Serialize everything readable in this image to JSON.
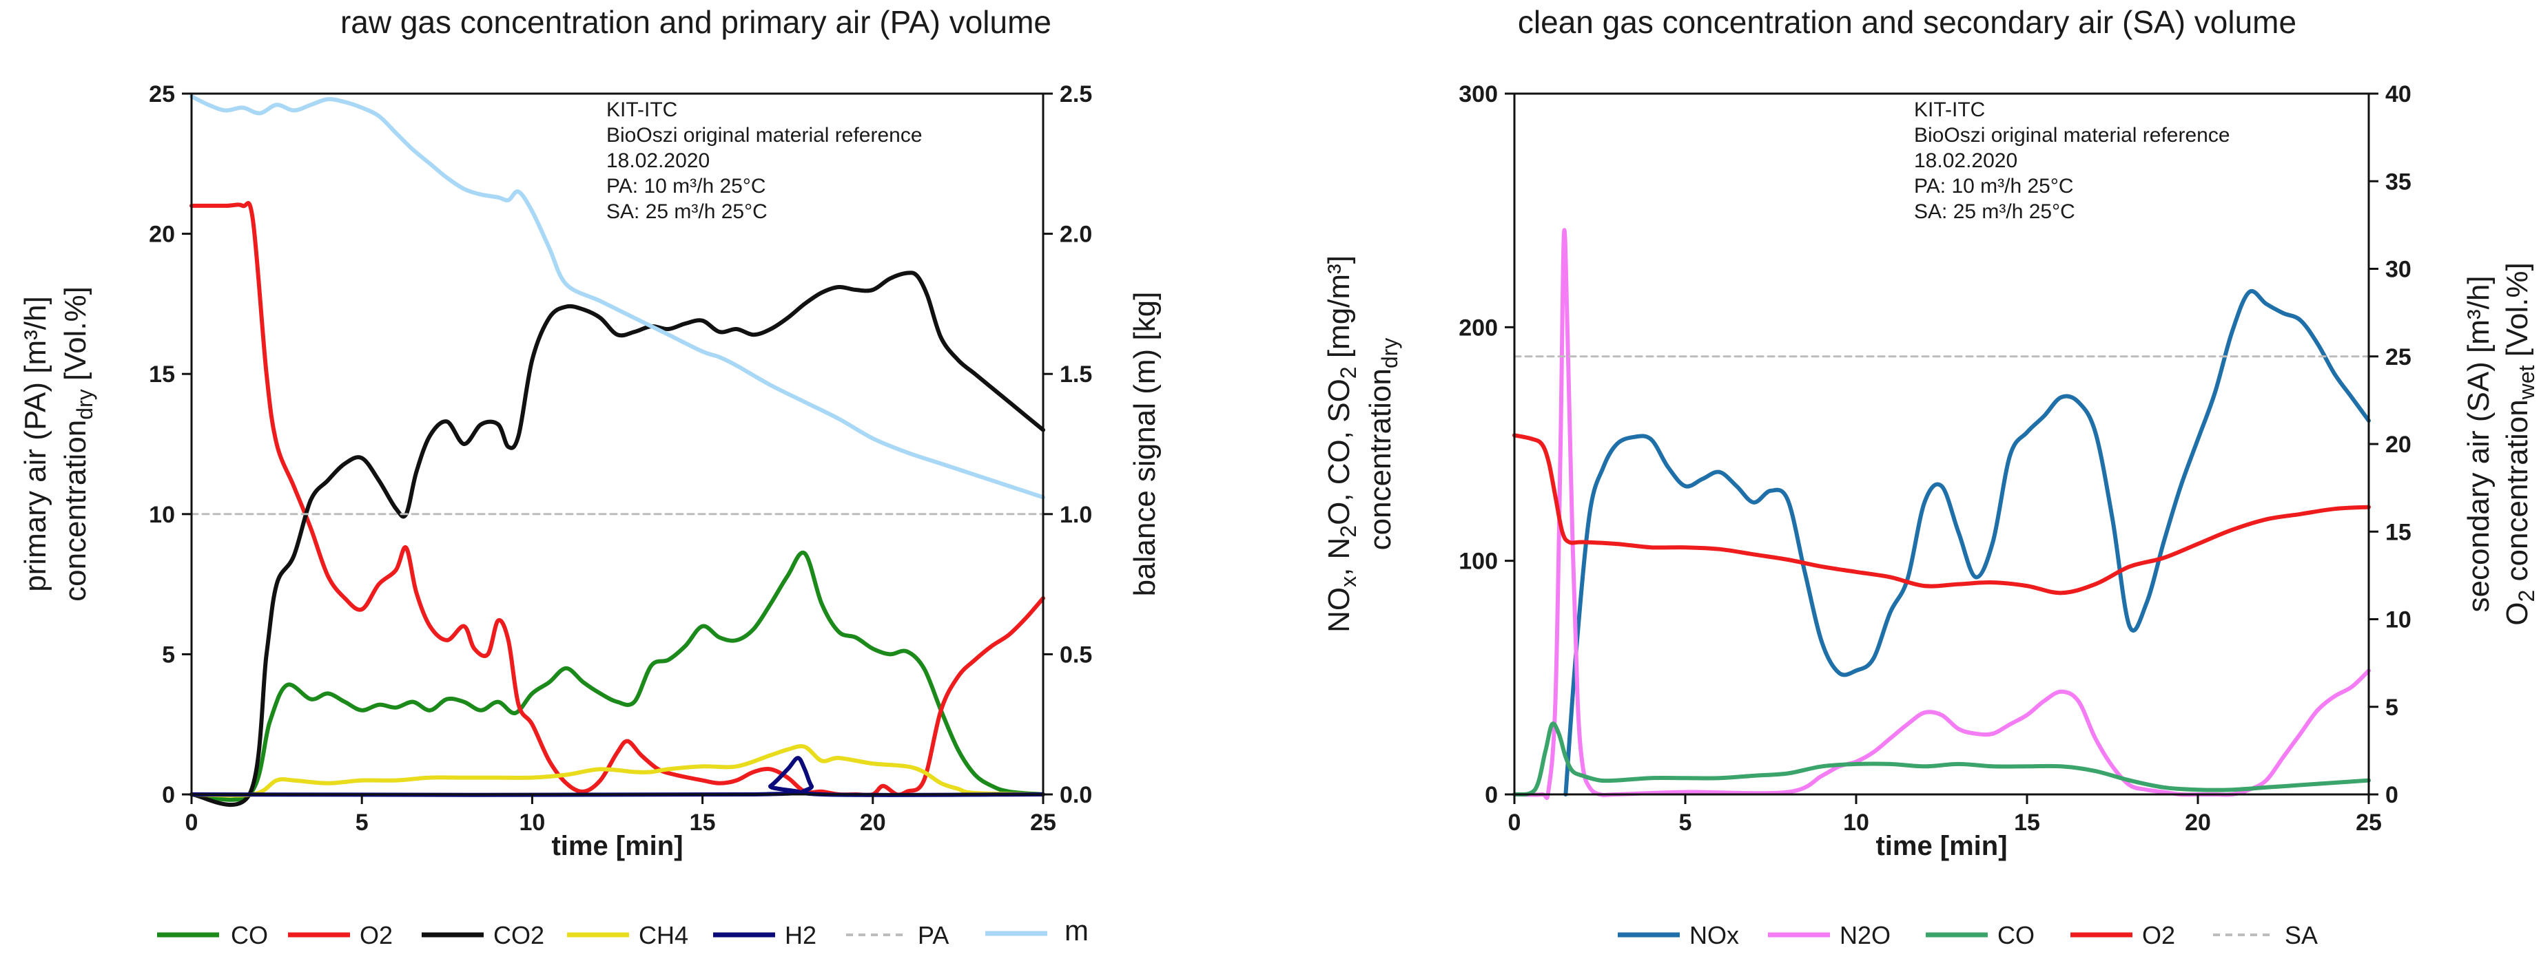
{
  "chart_data": [
    {
      "type": "line",
      "title": "raw gas concentration and primary air (PA) volume",
      "xlabel": "time [min]",
      "ylabel": [
        "primary air (PA) [m³/h]",
        "concentration",
        "dry",
        " [Vol.%]"
      ],
      "ylabel_right": "balance signal (m) [kg]",
      "xlim": [
        0,
        25
      ],
      "ylim": [
        0,
        25
      ],
      "ylim_right": [
        0,
        2.5
      ],
      "xticks": [
        "0",
        "5",
        "10",
        "15",
        "20",
        "25"
      ],
      "yticks": [
        "0",
        "5",
        "10",
        "15",
        "20",
        "25"
      ],
      "yticks_right": [
        "0.0",
        "0.5",
        "1.0",
        "1.5",
        "2.0",
        "2.5"
      ],
      "annotation": [
        "KIT-ITC",
        "BioOszi original material reference",
        "18.02.2020",
        "PA: 10 m³/h 25°C",
        "SA: 25 m³/h 25°C"
      ],
      "series": [
        {
          "name": "CO",
          "color": "#1b8a1b",
          "axis": "left",
          "dash": false,
          "x": [
            0,
            1.7,
            2.3,
            2.8,
            3.5,
            4,
            4.5,
            5,
            5.5,
            6,
            6.5,
            7,
            7.5,
            8,
            8.5,
            9,
            9.5,
            10,
            10.5,
            11,
            11.5,
            12,
            12.5,
            13,
            13.5,
            14,
            14.5,
            15,
            15.5,
            16,
            16.5,
            17,
            17.5,
            18,
            18.5,
            19,
            19.5,
            20,
            20.5,
            21,
            21.5,
            22,
            22.5,
            23,
            23.5,
            24,
            25
          ],
          "y": [
            0,
            0,
            2.6,
            3.9,
            3.4,
            3.6,
            3.3,
            3.0,
            3.2,
            3.1,
            3.3,
            3.0,
            3.4,
            3.3,
            3.0,
            3.3,
            2.9,
            3.6,
            4.0,
            4.5,
            4.0,
            3.6,
            3.3,
            3.3,
            4.6,
            4.8,
            5.3,
            6.0,
            5.6,
            5.5,
            5.9,
            6.8,
            7.8,
            8.6,
            6.8,
            5.8,
            5.6,
            5.2,
            5.0,
            5.1,
            4.5,
            3.0,
            1.6,
            0.7,
            0.3,
            0.1,
            0
          ]
        },
        {
          "name": "O2",
          "color": "#ee1c1c",
          "axis": "left",
          "dash": false,
          "x": [
            0,
            1,
            1.5,
            1.8,
            2.2,
            2.5,
            3,
            3.5,
            4,
            4.5,
            5,
            5.5,
            6,
            6.3,
            6.6,
            7,
            7.5,
            8,
            8.3,
            8.7,
            9,
            9.3,
            9.6,
            10,
            10.5,
            11,
            11.5,
            12,
            12.5,
            12.8,
            13.2,
            13.7,
            14.2,
            15,
            15.5,
            16,
            16.5,
            17,
            17.5,
            18,
            18.5,
            19,
            19.5,
            20,
            20.3,
            20.7,
            21,
            21.5,
            22,
            22.5,
            23,
            23.5,
            24,
            24.5,
            25
          ],
          "y": [
            21,
            21,
            21,
            20.5,
            15,
            12.5,
            11.0,
            9.5,
            7.8,
            7.0,
            6.6,
            7.5,
            8.0,
            8.8,
            7.2,
            6.0,
            5.5,
            6.0,
            5.2,
            5.0,
            6.2,
            5.5,
            3.2,
            2.5,
            1.2,
            0.4,
            0.1,
            0.5,
            1.5,
            1.9,
            1.4,
            0.9,
            0.7,
            0.5,
            0.4,
            0.5,
            0.8,
            0.9,
            0.6,
            0.1,
            0.1,
            0,
            0,
            0,
            0.3,
            0,
            0.1,
            0.5,
            3.0,
            4.2,
            4.8,
            5.3,
            5.7,
            6.3,
            7.0
          ]
        },
        {
          "name": "CO2",
          "color": "#111111",
          "axis": "left",
          "dash": false,
          "x": [
            0,
            1.7,
            2.2,
            2.5,
            3,
            3.5,
            4,
            4.5,
            5,
            5.5,
            6,
            6.3,
            6.6,
            7,
            7.5,
            8,
            8.5,
            9,
            9.3,
            9.6,
            10,
            10.5,
            11,
            11.5,
            12,
            12.5,
            13,
            13.5,
            14,
            14.5,
            15,
            15.5,
            16,
            16.5,
            17,
            17.5,
            18,
            18.5,
            19,
            19.5,
            20,
            20.5,
            21,
            21.3,
            21.6,
            22,
            22.5,
            23,
            23.5,
            24,
            24.5,
            25
          ],
          "y": [
            0,
            0,
            5,
            7.5,
            8.5,
            10.5,
            11.2,
            11.8,
            12.0,
            11.2,
            10.2,
            10.0,
            11.5,
            12.8,
            13.3,
            12.5,
            13.2,
            13.2,
            12.4,
            12.8,
            15.5,
            17.0,
            17.4,
            17.3,
            17.0,
            16.4,
            16.5,
            16.7,
            16.6,
            16.8,
            16.9,
            16.5,
            16.6,
            16.4,
            16.6,
            17.0,
            17.5,
            17.9,
            18.1,
            18.0,
            18.0,
            18.4,
            18.6,
            18.5,
            17.8,
            16.3,
            15.5,
            15.0,
            14.5,
            14.0,
            13.5,
            13.0
          ]
        },
        {
          "name": "CH4",
          "color": "#e8dc1c",
          "axis": "left",
          "dash": false,
          "x": [
            0,
            1.8,
            2.5,
            3,
            4,
            5,
            6,
            7,
            8,
            9,
            10,
            11,
            12,
            13,
            13.5,
            14,
            15,
            16,
            17,
            17.5,
            18,
            18.5,
            19,
            20,
            21,
            21.5,
            22,
            22.5,
            23,
            25
          ],
          "y": [
            0,
            0,
            0.5,
            0.5,
            0.4,
            0.5,
            0.5,
            0.6,
            0.6,
            0.6,
            0.6,
            0.7,
            0.9,
            0.8,
            0.8,
            0.9,
            1.0,
            1.0,
            1.4,
            1.6,
            1.7,
            1.2,
            1.3,
            1.1,
            1.0,
            0.8,
            0.4,
            0.2,
            0.05,
            0
          ]
        },
        {
          "name": "H2",
          "color": "#0a0a7a",
          "axis": "left",
          "dash": false,
          "x": [
            0,
            16.5,
            17,
            17.5,
            17.8,
            18,
            18.2,
            18.5,
            25
          ],
          "y": [
            0,
            0,
            0.3,
            0.9,
            1.3,
            0.9,
            0.3,
            0,
            0
          ]
        },
        {
          "name": "PA",
          "color": "#bdbdbd",
          "axis": "left",
          "dash": true,
          "x": [
            0,
            25
          ],
          "y": [
            10,
            10
          ]
        },
        {
          "name": "m",
          "color": "#a8d8f5",
          "axis": "right",
          "dash": false,
          "x": [
            0,
            0.5,
            1,
            1.5,
            2,
            2.5,
            3,
            3.5,
            4,
            4.5,
            5,
            5.5,
            6,
            6.5,
            7,
            7.5,
            8,
            8.5,
            9,
            9.3,
            9.6,
            10,
            10.5,
            11,
            12,
            13,
            14,
            15,
            15.5,
            16,
            17,
            18,
            19,
            20,
            21,
            22,
            23,
            24,
            25
          ],
          "y": [
            2.49,
            2.46,
            2.44,
            2.45,
            2.43,
            2.46,
            2.44,
            2.46,
            2.48,
            2.47,
            2.45,
            2.42,
            2.36,
            2.3,
            2.25,
            2.2,
            2.16,
            2.14,
            2.13,
            2.12,
            2.15,
            2.08,
            1.95,
            1.82,
            1.76,
            1.7,
            1.64,
            1.58,
            1.56,
            1.53,
            1.46,
            1.4,
            1.34,
            1.27,
            1.22,
            1.18,
            1.14,
            1.1,
            1.06
          ]
        }
      ]
    },
    {
      "type": "line",
      "title": "clean gas concentration and secondary air (SA) volume",
      "xlabel": "time [min]",
      "ylabel_line1": [
        "NO",
        "x",
        ", N",
        "2",
        "O, CO, SO",
        "2",
        " [mg/m³]"
      ],
      "ylabel_line2": [
        "concentration",
        "dry"
      ],
      "ylabel_right_line1": "secondary air (SA) [m³/h]",
      "ylabel_right_line2": [
        "O",
        "2",
        " concentration",
        "wet",
        " [Vol.%]"
      ],
      "xlim": [
        0,
        25
      ],
      "ylim": [
        0,
        300
      ],
      "ylim_right": [
        0,
        40
      ],
      "xticks": [
        "0",
        "5",
        "10",
        "15",
        "20",
        "25"
      ],
      "yticks": [
        "0",
        "100",
        "200",
        "300"
      ],
      "yticks_right": [
        "0",
        "5",
        "10",
        "15",
        "20",
        "25",
        "30",
        "35",
        "40"
      ],
      "annotation": [
        "KIT-ITC",
        "BioOszi original material reference",
        "18.02.2020",
        "PA: 10 m³/h 25°C",
        "SA: 25 m³/h 25°C"
      ],
      "series": [
        {
          "name": "NOx",
          "color": "#1f6fa8",
          "axis": "left",
          "dash": false,
          "x": [
            1.5,
            1.8,
            2.2,
            2.6,
            3,
            3.5,
            4,
            4.5,
            5,
            5.5,
            6,
            6.5,
            7,
            7.5,
            8,
            8.5,
            9,
            9.5,
            10,
            10.5,
            11,
            11.5,
            12,
            12.5,
            13,
            13.5,
            14,
            14.5,
            15,
            15.5,
            16,
            16.5,
            17,
            17.5,
            18,
            18.5,
            19,
            19.5,
            20,
            20.5,
            21,
            21.5,
            22,
            22.5,
            23,
            23.5,
            24,
            24.5,
            25
          ],
          "y": [
            0,
            60,
            120,
            140,
            150,
            153,
            152,
            140,
            132,
            135,
            138,
            132,
            125,
            130,
            126,
            95,
            65,
            52,
            53,
            58,
            78,
            92,
            125,
            132,
            112,
            93,
            108,
            145,
            155,
            162,
            170,
            168,
            155,
            118,
            72,
            82,
            108,
            132,
            152,
            172,
            198,
            215,
            210,
            206,
            203,
            193,
            180,
            170,
            160
          ]
        },
        {
          "name": "N2O",
          "color": "#f47cf4",
          "axis": "left",
          "dash": false,
          "x": [
            0,
            0.8,
            1.0,
            1.2,
            1.35,
            1.45,
            1.55,
            1.7,
            1.85,
            2.0,
            2.2,
            2.5,
            3,
            5,
            8,
            9,
            9.5,
            10,
            10.5,
            11,
            11.5,
            12,
            12.5,
            13,
            13.5,
            14,
            14.5,
            15,
            15.5,
            16,
            16.5,
            17,
            17.5,
            18,
            18.5,
            19,
            19.5,
            20,
            20.5,
            21,
            21.5,
            22,
            22.5,
            23,
            23.5,
            24,
            24.5,
            25
          ],
          "y": [
            0,
            0,
            2,
            40,
            150,
            240,
            200,
            110,
            40,
            12,
            3,
            0,
            0,
            1,
            1,
            8,
            12,
            14,
            18,
            24,
            30,
            35,
            34,
            28,
            26,
            26,
            30,
            34,
            40,
            44,
            40,
            24,
            12,
            4,
            2,
            1,
            0,
            0,
            0,
            0,
            2,
            6,
            16,
            26,
            36,
            42,
            46,
            53
          ]
        },
        {
          "name": "CO",
          "color": "#3aa46a",
          "axis": "left",
          "dash": false,
          "x": [
            0,
            0.6,
            0.9,
            1.1,
            1.3,
            1.5,
            1.7,
            2.0,
            2.5,
            3,
            4,
            5,
            6,
            7,
            8,
            9,
            10,
            11,
            12,
            13,
            14,
            15,
            16,
            17,
            18,
            19,
            20,
            21,
            22,
            23,
            24,
            25
          ],
          "y": [
            0,
            2,
            18,
            30,
            26,
            16,
            10,
            8,
            6,
            6,
            7,
            7,
            7,
            8,
            9,
            12,
            13,
            13,
            12,
            13,
            12,
            12,
            12,
            10,
            6,
            3,
            2,
            2,
            3,
            4,
            5,
            6
          ]
        },
        {
          "name": "O2",
          "color": "#ee1c1c",
          "axis": "right",
          "dash": false,
          "x": [
            0,
            0.5,
            0.8,
            1.0,
            1.2,
            1.4,
            1.6,
            2,
            3,
            4,
            5,
            6,
            7,
            8,
            9,
            10,
            11,
            12,
            13,
            14,
            15,
            16,
            17,
            18,
            19,
            20,
            21,
            22,
            23,
            24,
            25
          ],
          "y": [
            20.5,
            20.3,
            20.0,
            19.0,
            17.0,
            15.0,
            14.4,
            14.4,
            14.3,
            14.1,
            14.1,
            14.0,
            13.7,
            13.4,
            13.0,
            12.7,
            12.4,
            11.9,
            12.0,
            12.1,
            11.9,
            11.5,
            12.0,
            13.0,
            13.5,
            14.3,
            15.1,
            15.7,
            16.0,
            16.3,
            16.4
          ]
        },
        {
          "name": "SA",
          "color": "#bdbdbd",
          "axis": "right",
          "dash": true,
          "x": [
            0,
            25
          ],
          "y": [
            25,
            25
          ]
        }
      ]
    }
  ]
}
